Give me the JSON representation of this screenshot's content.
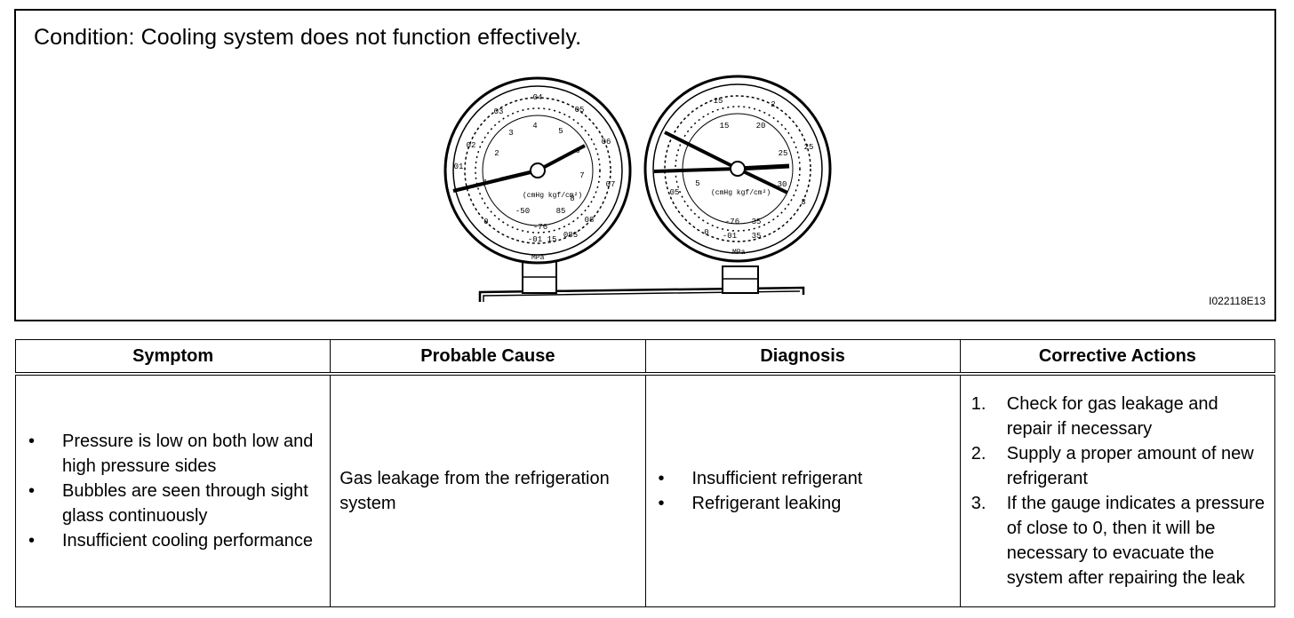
{
  "figure": {
    "condition": "Condition: Cooling system does not function effectively.",
    "code": "I022118E13",
    "left_gauge": {
      "outer_labels": [
        "01",
        "02",
        "03",
        "04",
        "05",
        "06",
        "07",
        "08",
        "085",
        "0",
        "-01",
        "15"
      ],
      "inner_labels": [
        "1",
        "2",
        "3",
        "4",
        "5",
        "6",
        "7",
        "8",
        "-50",
        "-76",
        "85"
      ],
      "units": "(cmHg kgf/cm²)",
      "mpa": "MPa"
    },
    "right_gauge": {
      "outer_labels": [
        "15",
        "2",
        "25",
        "3",
        "05",
        "0",
        "-01",
        "35"
      ],
      "inner_labels": [
        "5",
        "15",
        "20",
        "25",
        "30",
        "-76",
        "35"
      ],
      "units": "(cmHg kgf/cm²)",
      "mpa": "MPa"
    }
  },
  "table": {
    "headers": [
      "Symptom",
      "Probable Cause",
      "Diagnosis",
      "Corrective Actions"
    ],
    "symptoms": [
      "Pressure is low on both low and high pressure sides",
      "Bubbles are seen through sight glass continuously",
      "Insufficient cooling performance"
    ],
    "cause": "Gas leakage from the refrigeration system",
    "diagnosis": [
      "Insufficient refrigerant",
      "Refrigerant leaking"
    ],
    "actions": [
      {
        "num": "1.",
        "text": "Check for gas leakage and repair if necessary"
      },
      {
        "num": "2.",
        "text": "Supply a proper amount of new refrigerant"
      },
      {
        "num": "3.",
        "text": "If the gauge indicates a pressure of close to 0, then it will be necessary to evacuate the system after repairing the leak"
      }
    ],
    "bullet": "•"
  }
}
